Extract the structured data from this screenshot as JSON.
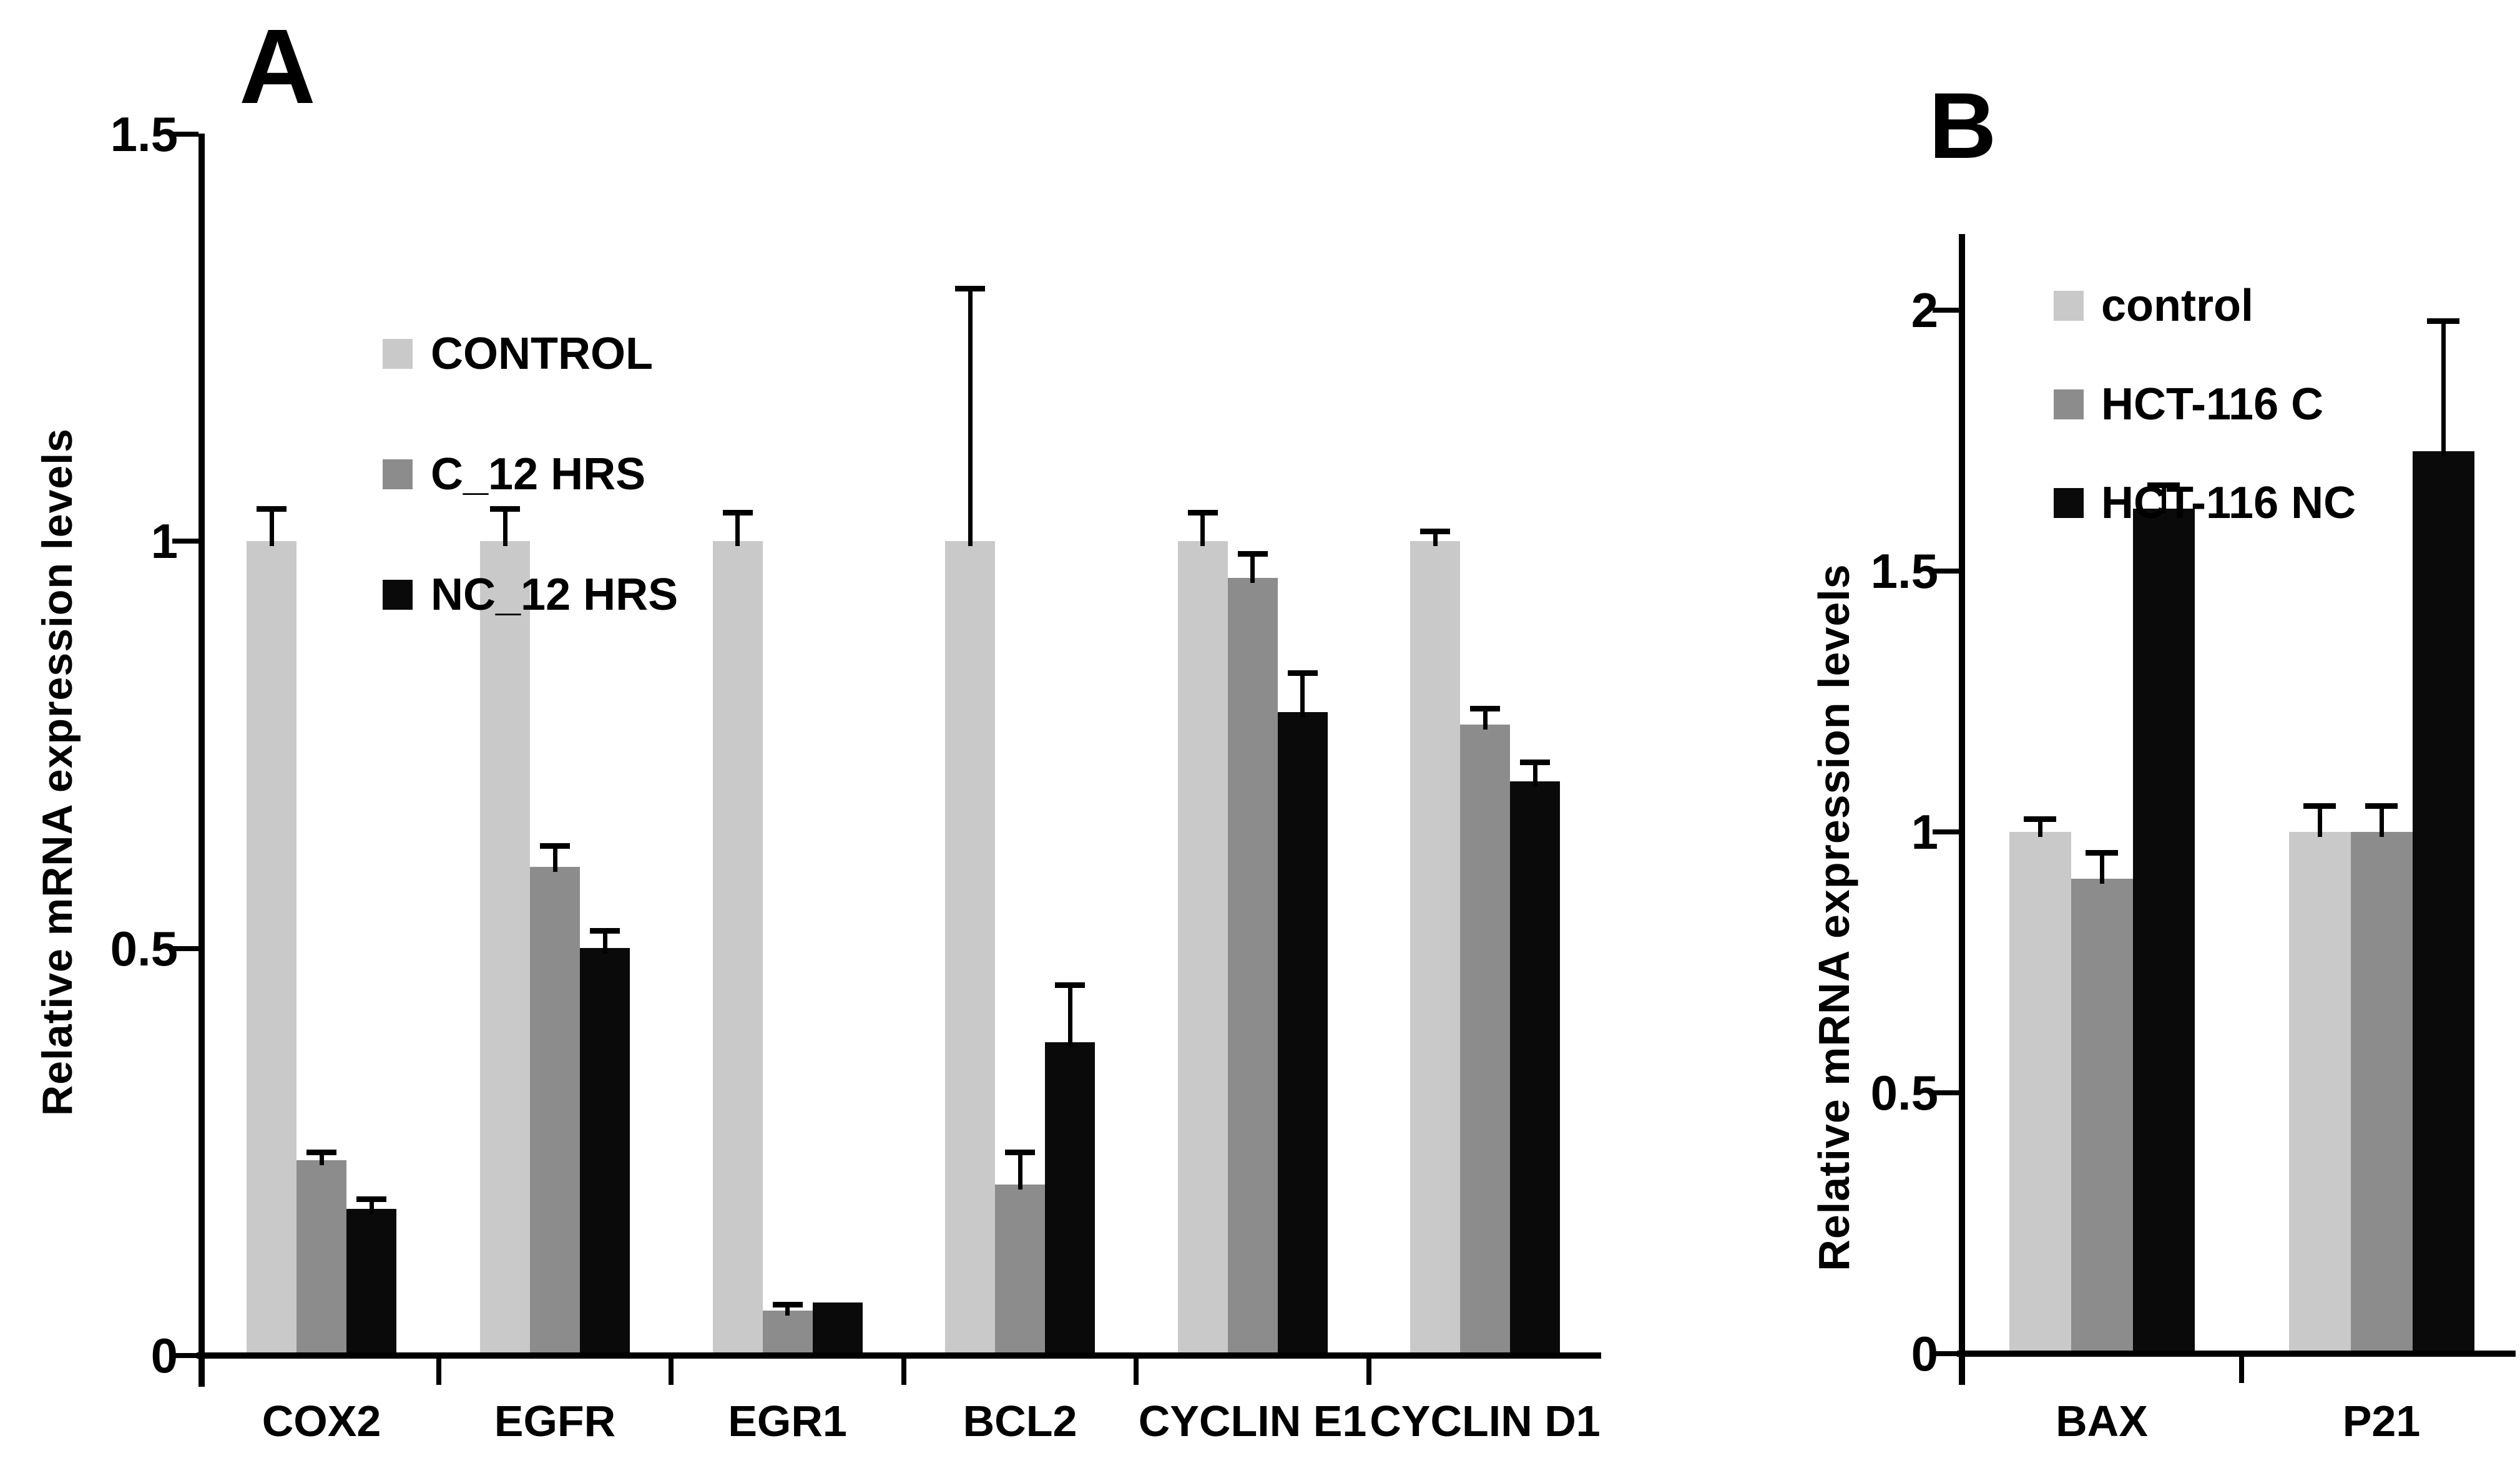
{
  "figure": {
    "background": "#ffffff",
    "text_color": "#000000"
  },
  "chart_data": [
    {
      "type": "bar",
      "panel_label": "A",
      "ylabel": "Relative mRNA expression levels",
      "ylim": [
        0,
        1.5
      ],
      "yticks": [
        0,
        0.5,
        1,
        1.5
      ],
      "ytick_labels": [
        "0",
        "0.5",
        "1",
        "1.5"
      ],
      "categories": [
        "COX2",
        "EGFR",
        "EGR1",
        "BCL2",
        "CYCLIN E1",
        "CYCLIN D1"
      ],
      "series": [
        {
          "name": "CONTROL",
          "color": "#c9c9c9",
          "values": [
            1.0,
            1.0,
            1.0,
            1.0,
            1.0,
            1.0
          ],
          "errors": [
            0.04,
            0.04,
            0.035,
            0.31,
            0.035,
            0.012
          ]
        },
        {
          "name": "C_12 HRS",
          "color": "#8c8c8c",
          "values": [
            0.24,
            0.6,
            0.055,
            0.21,
            0.955,
            0.775
          ],
          "errors": [
            0.01,
            0.026,
            0.008,
            0.04,
            0.03,
            0.02
          ]
        },
        {
          "name": "NC_12 HRS",
          "color": "#0a0a0a",
          "values": [
            0.18,
            0.5,
            0.065,
            0.385,
            0.79,
            0.705
          ],
          "errors": [
            0.012,
            0.022,
            0,
            0.07,
            0.048,
            0.024
          ]
        }
      ],
      "legend_position": "upper-left-inside",
      "grid": false
    },
    {
      "type": "bar",
      "panel_label": "B",
      "ylabel": "Relative mRNA expression levels",
      "ylim": [
        0,
        2.15
      ],
      "yticks": [
        0,
        0.5,
        1,
        1.5,
        2
      ],
      "ytick_labels": [
        "0",
        "0.5",
        "1",
        "1.5",
        "2"
      ],
      "categories": [
        "BAX",
        "P21"
      ],
      "series": [
        {
          "name": "control",
          "color": "#c9c9c9",
          "values": [
            1.0,
            1.0
          ],
          "errors": [
            0.025,
            0.05
          ]
        },
        {
          "name": "HCT-116 C",
          "color": "#8c8c8c",
          "values": [
            0.91,
            1.0
          ],
          "errors": [
            0.05,
            0.05
          ]
        },
        {
          "name": "HCT-116 NC",
          "color": "#0a0a0a",
          "values": [
            1.62,
            1.73
          ],
          "errors": [
            0.045,
            0.25
          ]
        }
      ],
      "legend_position": "upper-right-inside",
      "grid": false
    }
  ]
}
